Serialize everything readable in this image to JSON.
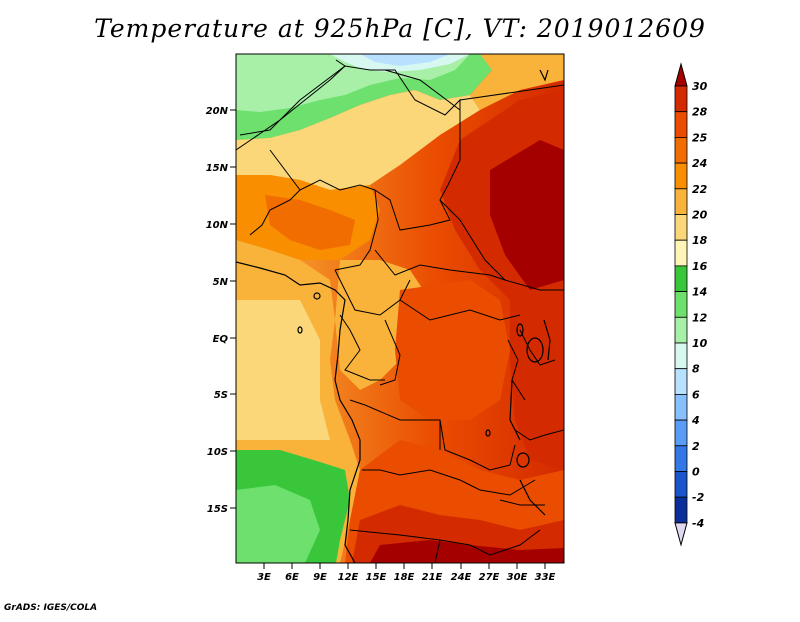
{
  "title": "Temperature at 925hPa [C], VT: 2019012609",
  "credit": "GrADS: IGES/COLA",
  "latitude_labels": [
    "20N",
    "15N",
    "10N",
    "5N",
    "EQ",
    "5S",
    "10S",
    "15S"
  ],
  "longitude_labels": [
    "3E",
    "6E",
    "9E",
    "12E",
    "15E",
    "18E",
    "21E",
    "24E",
    "27E",
    "30E",
    "33E"
  ],
  "colorbar": {
    "labels": [
      "30",
      "28",
      "25",
      "24",
      "22",
      "20",
      "18",
      "16",
      "14",
      "12",
      "10",
      "8",
      "6",
      "4",
      "2",
      "0",
      "-2",
      "-4"
    ],
    "colors": [
      "#a50000",
      "#d42a00",
      "#ea4d00",
      "#f26d00",
      "#f88e00",
      "#f9b33b",
      "#fbd77a",
      "#fff5b8",
      "#3ac63a",
      "#6ee06e",
      "#a8f0a8",
      "#d6f8f0",
      "#b8e0ff",
      "#88c0ff",
      "#5a9cf5",
      "#3478e8",
      "#1a55cc",
      "#0a2f9a",
      "#020a5a"
    ]
  }
}
